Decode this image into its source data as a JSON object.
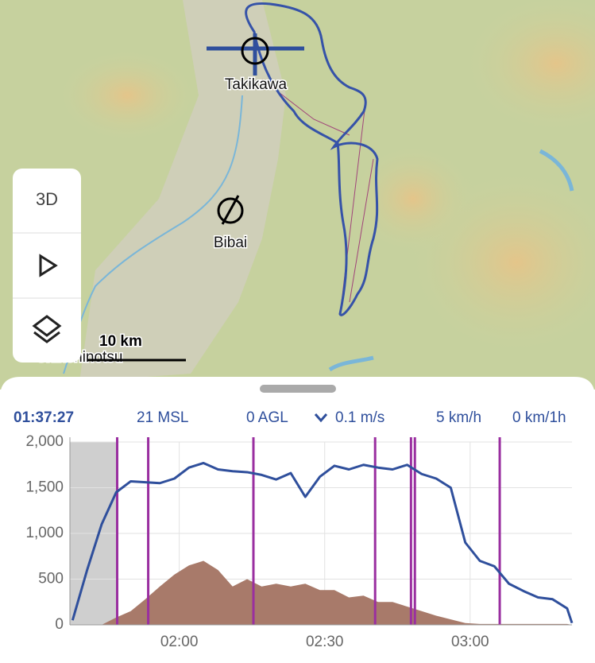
{
  "map": {
    "places": [
      "Takikawa",
      "Bibai",
      "Shinshinotsu"
    ],
    "scale": "10 km"
  },
  "controls": {
    "mode": "3D"
  },
  "stats": [
    "01:37:27",
    "21 MSL",
    "0 AGL",
    "0.1 m/s",
    "5 km/h",
    "0 km/1h"
  ],
  "chart_data": {
    "type": "line",
    "x": [
      98,
      101,
      104,
      107,
      110,
      113,
      116,
      119,
      122,
      125,
      128,
      131,
      134,
      137,
      140,
      143,
      146,
      149,
      152,
      155,
      158,
      161,
      164,
      167,
      170,
      173,
      176,
      179,
      182,
      185,
      188,
      191,
      194,
      197,
      200,
      201
    ],
    "series": [
      {
        "color": "#2f4f9c",
        "values": [
          50,
          600,
          1100,
          1450,
          1570,
          1560,
          1550,
          1600,
          1720,
          1770,
          1700,
          1680,
          1670,
          1640,
          1590,
          1660,
          1400,
          1620,
          1740,
          1700,
          1750,
          1720,
          1700,
          1750,
          1650,
          1600,
          1500,
          900,
          700,
          640,
          450,
          370,
          300,
          280,
          180,
          20
        ]
      },
      {
        "color": "#a87a6a",
        "values": [
          0,
          0,
          0,
          80,
          150,
          280,
          420,
          550,
          650,
          700,
          600,
          420,
          500,
          420,
          450,
          420,
          450,
          380,
          380,
          300,
          320,
          250,
          250,
          200,
          150,
          100,
          60,
          20,
          10,
          10,
          10,
          10,
          10,
          10,
          10,
          0
        ]
      }
    ],
    "events": [
      107.2,
      113.6,
      135.3,
      160.4,
      167.8,
      168.6,
      186.1
    ],
    "event_color": "#9a2fa0",
    "shade": [
      97.45,
      107.2
    ],
    "xlim": [
      97.45,
      201
    ],
    "xticks": [
      {
        "value": 120,
        "label": "02:00"
      },
      {
        "value": 150,
        "label": "02:30"
      },
      {
        "value": 180,
        "label": "03:00"
      }
    ],
    "ylim": [
      0,
      2000
    ],
    "yticks": [
      0,
      500,
      {
        "value": 1000,
        "label": "1,000"
      },
      {
        "value": 1500,
        "label": "1,500"
      },
      {
        "value": 2000,
        "label": "2,000"
      }
    ],
    "grid": true
  }
}
